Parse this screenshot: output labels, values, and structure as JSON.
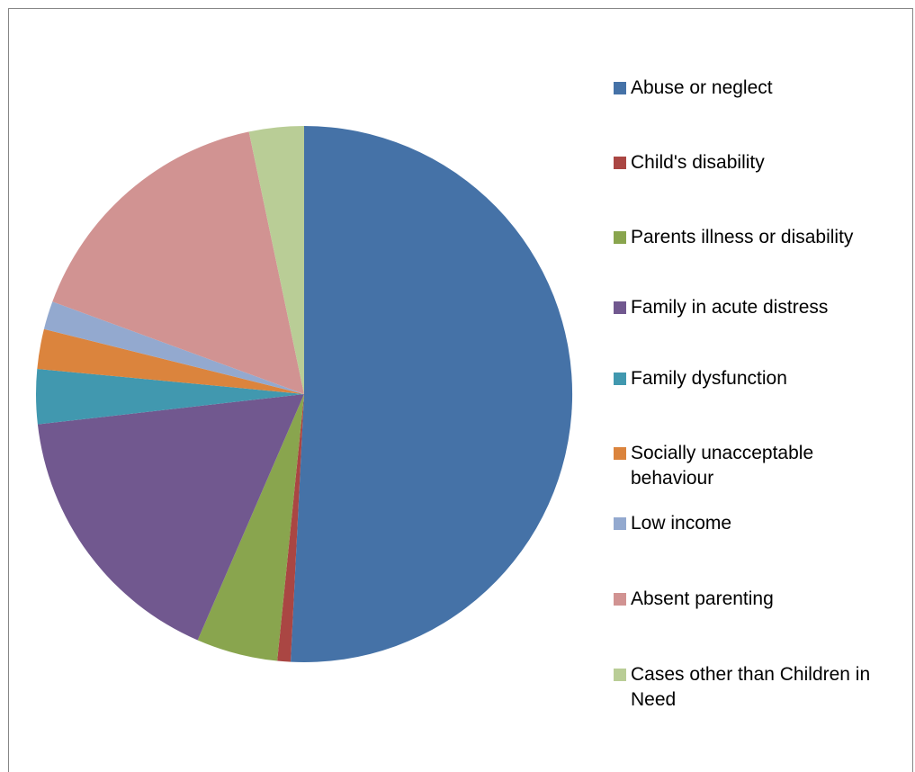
{
  "chart_data": {
    "type": "pie",
    "start_angle_deg": 0,
    "direction": "clockwise",
    "legend_position": "right",
    "slices": [
      {
        "name": "Abuse or neglect",
        "value": 50.8,
        "color": "#4572A7"
      },
      {
        "name": "Child's disability",
        "value": 0.8,
        "color": "#AA4643"
      },
      {
        "name": "Parents illness or disability",
        "value": 4.9,
        "color": "#89A54E"
      },
      {
        "name": "Family in acute distress",
        "value": 16.7,
        "color": "#71588F"
      },
      {
        "name": "Family dysfunction",
        "value": 3.3,
        "color": "#4198AF"
      },
      {
        "name": "Socially unacceptable behaviour",
        "value": 2.4,
        "color": "#DB843D"
      },
      {
        "name": "Low income",
        "value": 1.7,
        "color": "#93A9CF"
      },
      {
        "name": "Absent parenting",
        "value": 16.1,
        "color": "#D19392"
      },
      {
        "name": "Cases other than Children in Need",
        "value": 3.3,
        "color": "#B9CD96"
      }
    ]
  }
}
